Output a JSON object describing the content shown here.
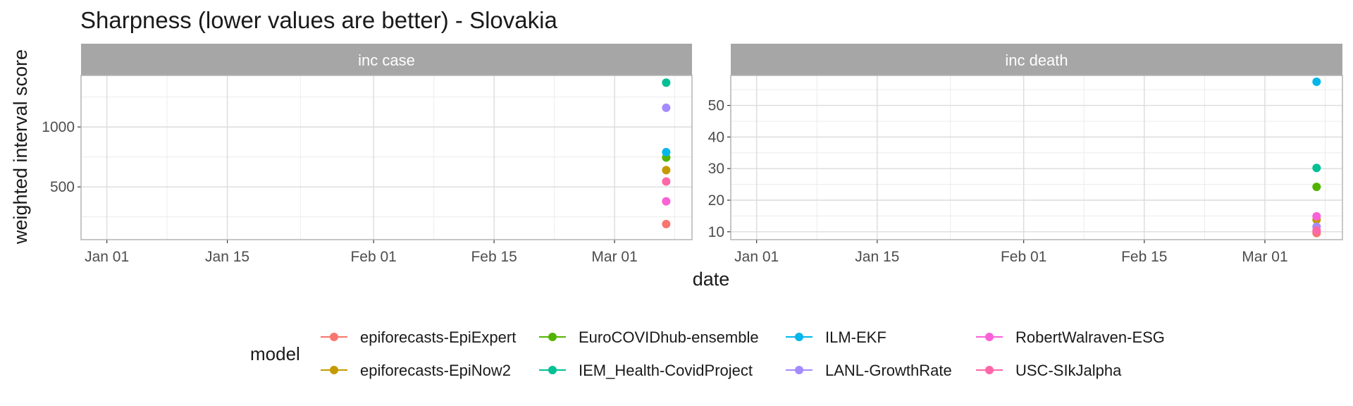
{
  "chart_data": {
    "type": "scatter",
    "title": "Sharpness (lower values are better) - Slovakia",
    "xlabel": "date",
    "ylabel": "weighted interval score",
    "x_ticks": [
      "Jan 01",
      "Jan 15",
      "Feb 01",
      "Feb 15",
      "Mar 01"
    ],
    "legend_title": "model",
    "legend_position": "bottom",
    "grid": true,
    "models": [
      {
        "name": "epiforecasts-EpiExpert",
        "color": "#F8766D"
      },
      {
        "name": "epiforecasts-EpiNow2",
        "color": "#C49A00"
      },
      {
        "name": "EuroCOVIDhub-ensemble",
        "color": "#53B400"
      },
      {
        "name": "IEM_Health-CovidProject",
        "color": "#00C094"
      },
      {
        "name": "ILM-EKF",
        "color": "#00B6EB"
      },
      {
        "name": "LANL-GrowthRate",
        "color": "#A58AFF"
      },
      {
        "name": "RobertWalraven-ESG",
        "color": "#FB61D7"
      },
      {
        "name": "USC-SIkJalpha",
        "color": "#FF66A8"
      }
    ],
    "panels": [
      {
        "label": "inc case",
        "ylim": [
          60,
          1430
        ],
        "y_ticks": [
          500,
          1000
        ],
        "points": [
          {
            "model": "epiforecasts-EpiExpert",
            "date": "2021-03-07",
            "value": 190
          },
          {
            "model": "epiforecasts-EpiNow2",
            "date": "2021-03-07",
            "value": 640
          },
          {
            "model": "EuroCOVIDhub-ensemble",
            "date": "2021-03-07",
            "value": 745
          },
          {
            "model": "IEM_Health-CovidProject",
            "date": "2021-03-07",
            "value": 1370
          },
          {
            "model": "ILM-EKF",
            "date": "2021-03-07",
            "value": 790
          },
          {
            "model": "LANL-GrowthRate",
            "date": "2021-03-07",
            "value": 1160
          },
          {
            "model": "RobertWalraven-ESG",
            "date": "2021-03-07",
            "value": 380
          },
          {
            "model": "USC-SIkJalpha",
            "date": "2021-03-07",
            "value": 545
          }
        ]
      },
      {
        "label": "inc death",
        "ylim": [
          7.5,
          59.5
        ],
        "y_ticks": [
          10,
          20,
          30,
          40,
          50
        ],
        "points": [
          {
            "model": "epiforecasts-EpiExpert",
            "date": "2021-03-07",
            "value": 9.6
          },
          {
            "model": "epiforecasts-EpiNow2",
            "date": "2021-03-07",
            "value": 13.8
          },
          {
            "model": "EuroCOVIDhub-ensemble",
            "date": "2021-03-07",
            "value": 24.2
          },
          {
            "model": "IEM_Health-CovidProject",
            "date": "2021-03-07",
            "value": 30.2
          },
          {
            "model": "ILM-EKF",
            "date": "2021-03-07",
            "value": 57.5
          },
          {
            "model": "LANL-GrowthRate",
            "date": "2021-03-07",
            "value": 11.6
          },
          {
            "model": "RobertWalraven-ESG",
            "date": "2021-03-07",
            "value": 14.9
          },
          {
            "model": "USC-SIkJalpha",
            "date": "2021-03-07",
            "value": 10.4
          }
        ]
      }
    ]
  }
}
